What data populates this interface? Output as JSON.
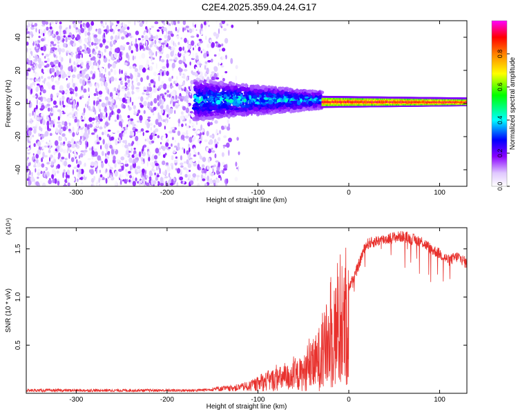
{
  "title": "C2E4.2025.359.04.24.G17",
  "chart_data": [
    {
      "type": "heatmap",
      "xlabel": "Height of straight line (km)",
      "ylabel": "Frequency (Hz)",
      "xlim": [
        -355,
        130
      ],
      "ylim": [
        -50,
        50
      ],
      "x_ticks": [
        -300,
        -200,
        -100,
        0,
        100
      ],
      "y_ticks": [
        -40,
        -20,
        0,
        20,
        40
      ],
      "colorbar": {
        "label": "Normalized spectral amplitude",
        "range": [
          0,
          1
        ],
        "ticks": [
          "0.0",
          "0.2",
          "0.4",
          "0.6",
          "0.8"
        ],
        "colormap": [
          "#ffffff",
          "#d9c2ff",
          "#7f00ff",
          "#0000ff",
          "#00ffff",
          "#00ff00",
          "#ffff00",
          "#ff8000",
          "#ff0000",
          "#ff00ff"
        ]
      },
      "regions": [
        {
          "x_range": [
            -355,
            -135
          ],
          "freq_range": [
            -50,
            50
          ],
          "pattern": "broadband noise",
          "amplitude": [
            0.0,
            0.2
          ]
        },
        {
          "x_range": [
            -170,
            -30
          ],
          "freq_center": 2,
          "freq_halfwidth": [
            12,
            5
          ],
          "pattern": "signal band",
          "amplitude": [
            0.15,
            0.45
          ]
        },
        {
          "x_range": [
            -30,
            130
          ],
          "freq_center": 1,
          "freq_halfwidth": [
            3,
            2
          ],
          "pattern": "narrow signal band",
          "amplitude": [
            0.4,
            0.95
          ]
        }
      ]
    },
    {
      "type": "line",
      "xlabel": "Height of straight line (km)",
      "ylabel": "SNR (10 * v/v)",
      "y_scale_label": "(x10⁴)",
      "xlim": [
        -355,
        130
      ],
      "ylim": [
        0,
        1.72
      ],
      "x_ticks": [
        -300,
        -200,
        -100,
        0,
        100
      ],
      "y_ticks": [
        "0.5",
        "1.0",
        "1.5"
      ],
      "series": [
        {
          "color": "#e8312d",
          "x": [
            -355,
            -300,
            -250,
            -200,
            -170,
            -150,
            -130,
            -110,
            -100,
            -90,
            -80,
            -70,
            -60,
            -50,
            -40,
            -35,
            -30,
            -25,
            -20,
            -15,
            -10,
            -5,
            0,
            5,
            10,
            15,
            20,
            30,
            40,
            50,
            60,
            70,
            80,
            90,
            100,
            110,
            120,
            130
          ],
          "values": [
            0.03,
            0.03,
            0.03,
            0.03,
            0.03,
            0.04,
            0.05,
            0.08,
            0.12,
            0.17,
            0.2,
            0.22,
            0.25,
            0.3,
            0.4,
            0.5,
            0.6,
            0.7,
            0.85,
            0.95,
            1.0,
            1.05,
            1.1,
            1.2,
            1.3,
            1.45,
            1.55,
            1.58,
            1.6,
            1.62,
            1.63,
            1.6,
            1.58,
            1.5,
            1.45,
            1.38,
            1.42,
            1.35
          ]
        }
      ]
    }
  ]
}
